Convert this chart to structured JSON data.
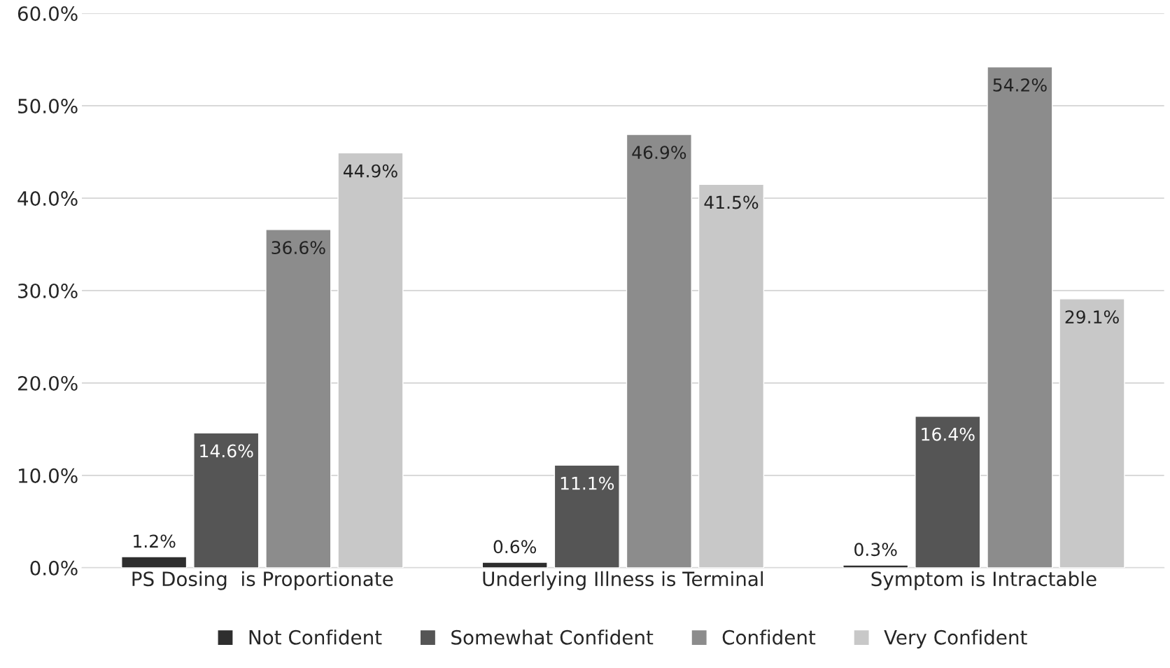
{
  "chart_data": {
    "type": "bar",
    "categories": [
      "PS Dosing  is Proportionate",
      "Underlying Illness is Terminal",
      "Symptom is Intractable"
    ],
    "series": [
      {
        "name": "Not Confident",
        "color": "#2e2e2e",
        "values": [
          1.2,
          0.6,
          0.3
        ],
        "value_labels": [
          "1.2%",
          "0.6%",
          "0.3%"
        ]
      },
      {
        "name": "Somewhat Confident",
        "color": "#555555",
        "values": [
          14.6,
          11.1,
          16.4
        ],
        "value_labels": [
          "14.6%",
          "11.1%",
          "16.4%"
        ]
      },
      {
        "name": "Confident",
        "color": "#8c8c8c",
        "values": [
          36.6,
          46.9,
          54.2
        ],
        "value_labels": [
          "36.6%",
          "46.9%",
          "54.2%"
        ]
      },
      {
        "name": "Very Confident",
        "color": "#c8c8c8",
        "values": [
          44.9,
          41.5,
          29.1
        ],
        "value_labels": [
          "44.9%",
          "41.5%",
          "29.1%"
        ]
      }
    ],
    "ylim": [
      0,
      60
    ],
    "yticks": [
      {
        "value": 0,
        "label": "0.0%"
      },
      {
        "value": 10,
        "label": "10.0%"
      },
      {
        "value": 20,
        "label": "20.0%"
      },
      {
        "value": 30,
        "label": "30.0%"
      },
      {
        "value": 40,
        "label": "40.0%"
      },
      {
        "value": 50,
        "label": "50.0%"
      },
      {
        "value": 60,
        "label": "60.0%"
      }
    ],
    "grid": "y",
    "legend": "bottom"
  }
}
